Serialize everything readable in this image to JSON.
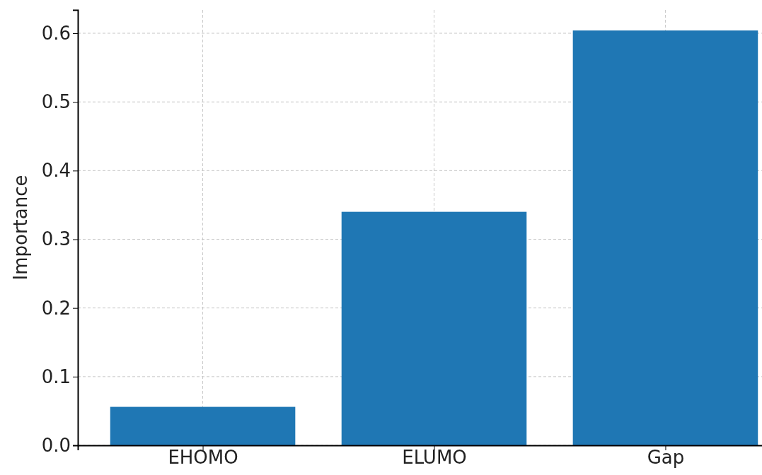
{
  "chart_data": {
    "type": "bar",
    "ylabel": "Importance",
    "categories": [
      "EHOMO",
      "ELUMO",
      "Gap"
    ],
    "values": [
      0.056,
      0.34,
      0.604
    ],
    "color": "#1f77b4",
    "ylim": [
      0,
      0.634
    ],
    "yticks": [
      {
        "value": 0,
        "label": "0.0"
      },
      {
        "value": 0.1,
        "label": "0.1"
      },
      {
        "value": 0.2,
        "label": "0.2"
      },
      {
        "value": 0.3,
        "label": "0.3"
      },
      {
        "value": 0.4,
        "label": "0.4"
      },
      {
        "value": 0.5,
        "label": "0.5"
      },
      {
        "value": 0.6,
        "label": "0.6"
      }
    ],
    "grid": true
  }
}
